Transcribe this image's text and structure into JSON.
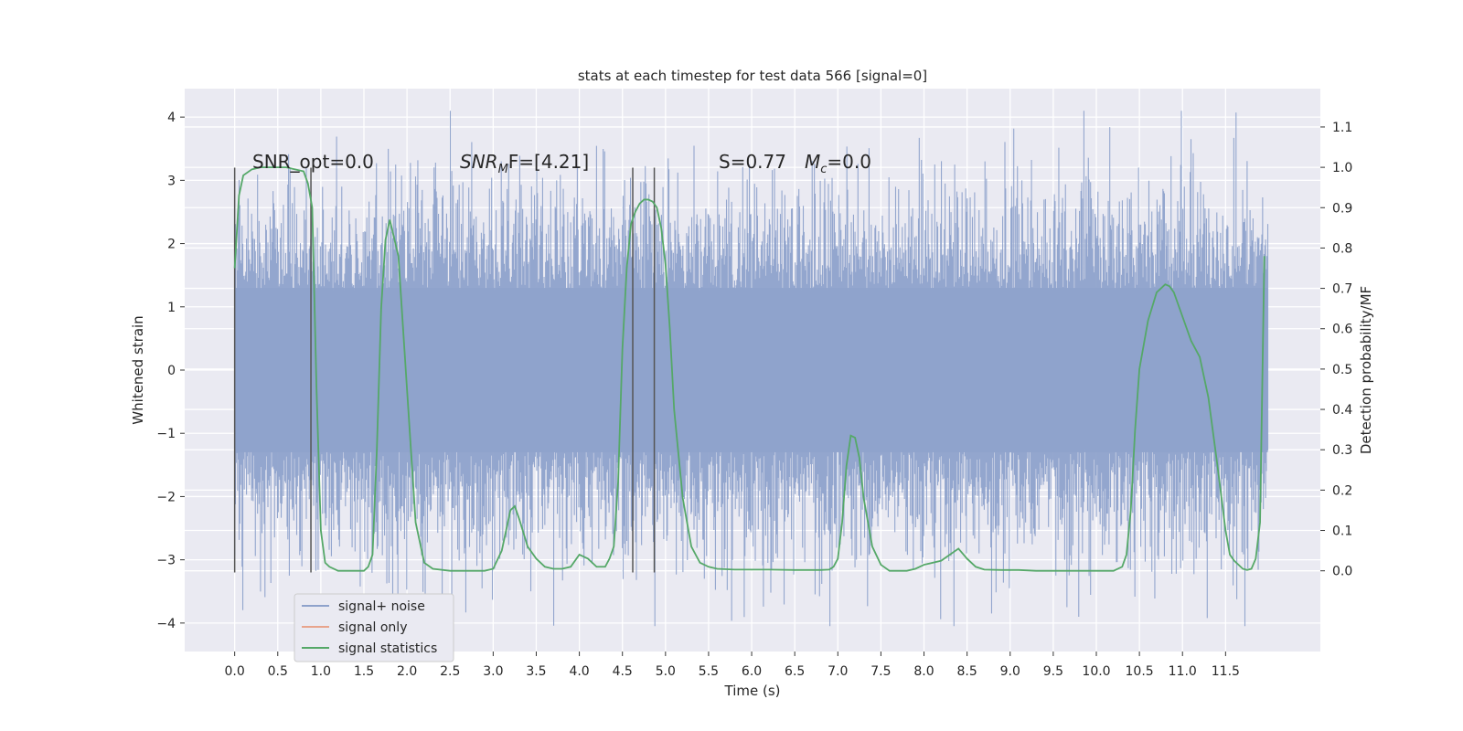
{
  "chart_data": {
    "type": "line",
    "title": "stats at each timestep for test data 566 [signal=0]",
    "xlabel": "Time (s)",
    "ylabel_left": "Whitened strain",
    "ylabel_right": "Detection probability/MF",
    "xlim": [
      -0.58,
      12.6
    ],
    "ylim_left": [
      -4.45,
      4.45
    ],
    "ylim_right": [
      -0.2,
      1.195
    ],
    "grid": true,
    "x_ticks": [
      0.0,
      0.5,
      1.0,
      1.5,
      2.0,
      2.5,
      3.0,
      3.5,
      4.0,
      4.5,
      5.0,
      5.5,
      6.0,
      6.5,
      7.0,
      7.5,
      8.0,
      8.5,
      9.0,
      9.5,
      10.0,
      10.5,
      11.0,
      11.5
    ],
    "x_tick_labels": [
      "0.0",
      "0.5",
      "1.0",
      "1.5",
      "2.0",
      "2.5",
      "3.0",
      "3.5",
      "4.0",
      "4.5",
      "5.0",
      "5.5",
      "6.0",
      "6.5",
      "7.0",
      "7.5",
      "8.0",
      "8.5",
      "9.0",
      "9.5",
      "10.0",
      "10.5",
      "11.0",
      "11.5"
    ],
    "y_left_ticks": [
      -4,
      -3,
      -2,
      -1,
      0,
      1,
      2,
      3,
      4
    ],
    "y_left_tick_labels": [
      "−4",
      "−3",
      "−2",
      "−1",
      "0",
      "1",
      "2",
      "3",
      "4"
    ],
    "y_right_ticks": [
      0.0,
      0.1,
      0.2,
      0.3,
      0.4,
      0.5,
      0.6,
      0.7,
      0.8,
      0.9,
      1.0,
      1.1
    ],
    "y_right_tick_labels": [
      "0.0",
      "0.1",
      "0.2",
      "0.3",
      "0.4",
      "0.5",
      "0.6",
      "0.7",
      "0.8",
      "0.9",
      "1.0",
      "1.1"
    ],
    "noise_series": {
      "name": "signal+ noise",
      "color": "#8ea2cb",
      "x_range": [
        0.0,
        11.99
      ],
      "typical_band": [
        -1.3,
        1.3
      ],
      "max_excursion": [
        -4.05,
        4.1
      ]
    },
    "signal_only_series": {
      "name": "signal only",
      "color": "#e8a48c",
      "values": []
    },
    "statistics_series": {
      "name": "signal statistics",
      "color": "#55a868",
      "x": [
        0.0,
        0.05,
        0.1,
        0.2,
        0.3,
        0.4,
        0.5,
        0.6,
        0.7,
        0.8,
        0.85,
        0.9,
        0.95,
        1.0,
        1.05,
        1.1,
        1.2,
        1.3,
        1.4,
        1.5,
        1.55,
        1.6,
        1.65,
        1.7,
        1.75,
        1.8,
        1.9,
        2.0,
        2.1,
        2.2,
        2.3,
        2.5,
        2.7,
        2.9,
        3.0,
        3.1,
        3.2,
        3.25,
        3.3,
        3.4,
        3.5,
        3.6,
        3.7,
        3.8,
        3.9,
        4.0,
        4.1,
        4.2,
        4.3,
        4.35,
        4.4,
        4.45,
        4.5,
        4.55,
        4.6,
        4.65,
        4.7,
        4.75,
        4.8,
        4.85,
        4.9,
        4.95,
        5.0,
        5.05,
        5.1,
        5.2,
        5.3,
        5.4,
        5.5,
        5.6,
        5.8,
        6.0,
        6.2,
        6.5,
        6.8,
        6.9,
        6.95,
        7.0,
        7.05,
        7.1,
        7.15,
        7.2,
        7.25,
        7.3,
        7.4,
        7.5,
        7.6,
        7.8,
        7.9,
        8.0,
        8.2,
        8.3,
        8.4,
        8.5,
        8.6,
        8.7,
        8.9,
        9.1,
        9.3,
        9.5,
        9.8,
        10.0,
        10.2,
        10.3,
        10.35,
        10.4,
        10.45,
        10.5,
        10.6,
        10.7,
        10.8,
        10.85,
        10.9,
        11.0,
        11.1,
        11.2,
        11.3,
        11.4,
        11.5,
        11.55,
        11.6,
        11.7,
        11.75,
        11.8,
        11.85,
        11.9,
        11.95
      ],
      "values": [
        0.75,
        0.93,
        0.98,
        0.995,
        1.0,
        1.0,
        1.0,
        1.0,
        0.995,
        0.99,
        0.96,
        0.9,
        0.45,
        0.1,
        0.02,
        0.01,
        0.0,
        0.0,
        0.0,
        0.0,
        0.01,
        0.04,
        0.3,
        0.65,
        0.82,
        0.87,
        0.78,
        0.45,
        0.12,
        0.02,
        0.005,
        0.0,
        0.0,
        0.0,
        0.005,
        0.05,
        0.15,
        0.16,
        0.13,
        0.06,
        0.03,
        0.01,
        0.005,
        0.005,
        0.01,
        0.04,
        0.03,
        0.01,
        0.01,
        0.03,
        0.06,
        0.22,
        0.55,
        0.75,
        0.86,
        0.89,
        0.91,
        0.92,
        0.92,
        0.915,
        0.9,
        0.85,
        0.76,
        0.6,
        0.4,
        0.18,
        0.06,
        0.02,
        0.01,
        0.005,
        0.003,
        0.003,
        0.003,
        0.002,
        0.002,
        0.003,
        0.01,
        0.03,
        0.12,
        0.26,
        0.335,
        0.33,
        0.28,
        0.18,
        0.06,
        0.015,
        0.0,
        0.0,
        0.005,
        0.015,
        0.025,
        0.04,
        0.055,
        0.03,
        0.01,
        0.003,
        0.002,
        0.002,
        0.0,
        0.0,
        0.0,
        0.0,
        0.0,
        0.01,
        0.04,
        0.15,
        0.35,
        0.5,
        0.62,
        0.69,
        0.71,
        0.705,
        0.69,
        0.63,
        0.57,
        0.53,
        0.43,
        0.27,
        0.1,
        0.04,
        0.025,
        0.005,
        0.002,
        0.005,
        0.03,
        0.12,
        0.78
      ]
    },
    "vertical_markers": [
      {
        "x": 0.0,
        "y_range": [
          -3.2,
          3.2
        ],
        "color": "#555555"
      },
      {
        "x": 0.885,
        "y_range": [
          -3.2,
          3.2
        ],
        "color": "#555555"
      },
      {
        "x": 4.62,
        "y_range": [
          -3.2,
          3.2
        ],
        "color": "#555555"
      },
      {
        "x": 4.87,
        "y_range": [
          -3.2,
          3.2
        ],
        "color": "#555555"
      }
    ],
    "annotations": [
      {
        "text_plain": "SNR_opt=0.0",
        "x": 0.2,
        "y": 3.2
      },
      {
        "text_plain": "SNR",
        "sub": "M",
        "text_after": "F=[4.21]",
        "x": 2.62,
        "y": 3.2
      },
      {
        "text_plain": "S=0.77",
        "x": 5.6,
        "y": 3.2
      },
      {
        "text_plain": "M",
        "sub": "c",
        "text_after": "=0.0",
        "x": 6.6,
        "y": 3.2
      }
    ],
    "legend": {
      "placement": "lower-left",
      "entries": [
        {
          "label": "signal+ noise",
          "color": "#8ea2cb"
        },
        {
          "label": "signal only",
          "color": "#e8a48c"
        },
        {
          "label": "signal statistics",
          "color": "#55a868"
        }
      ]
    }
  }
}
